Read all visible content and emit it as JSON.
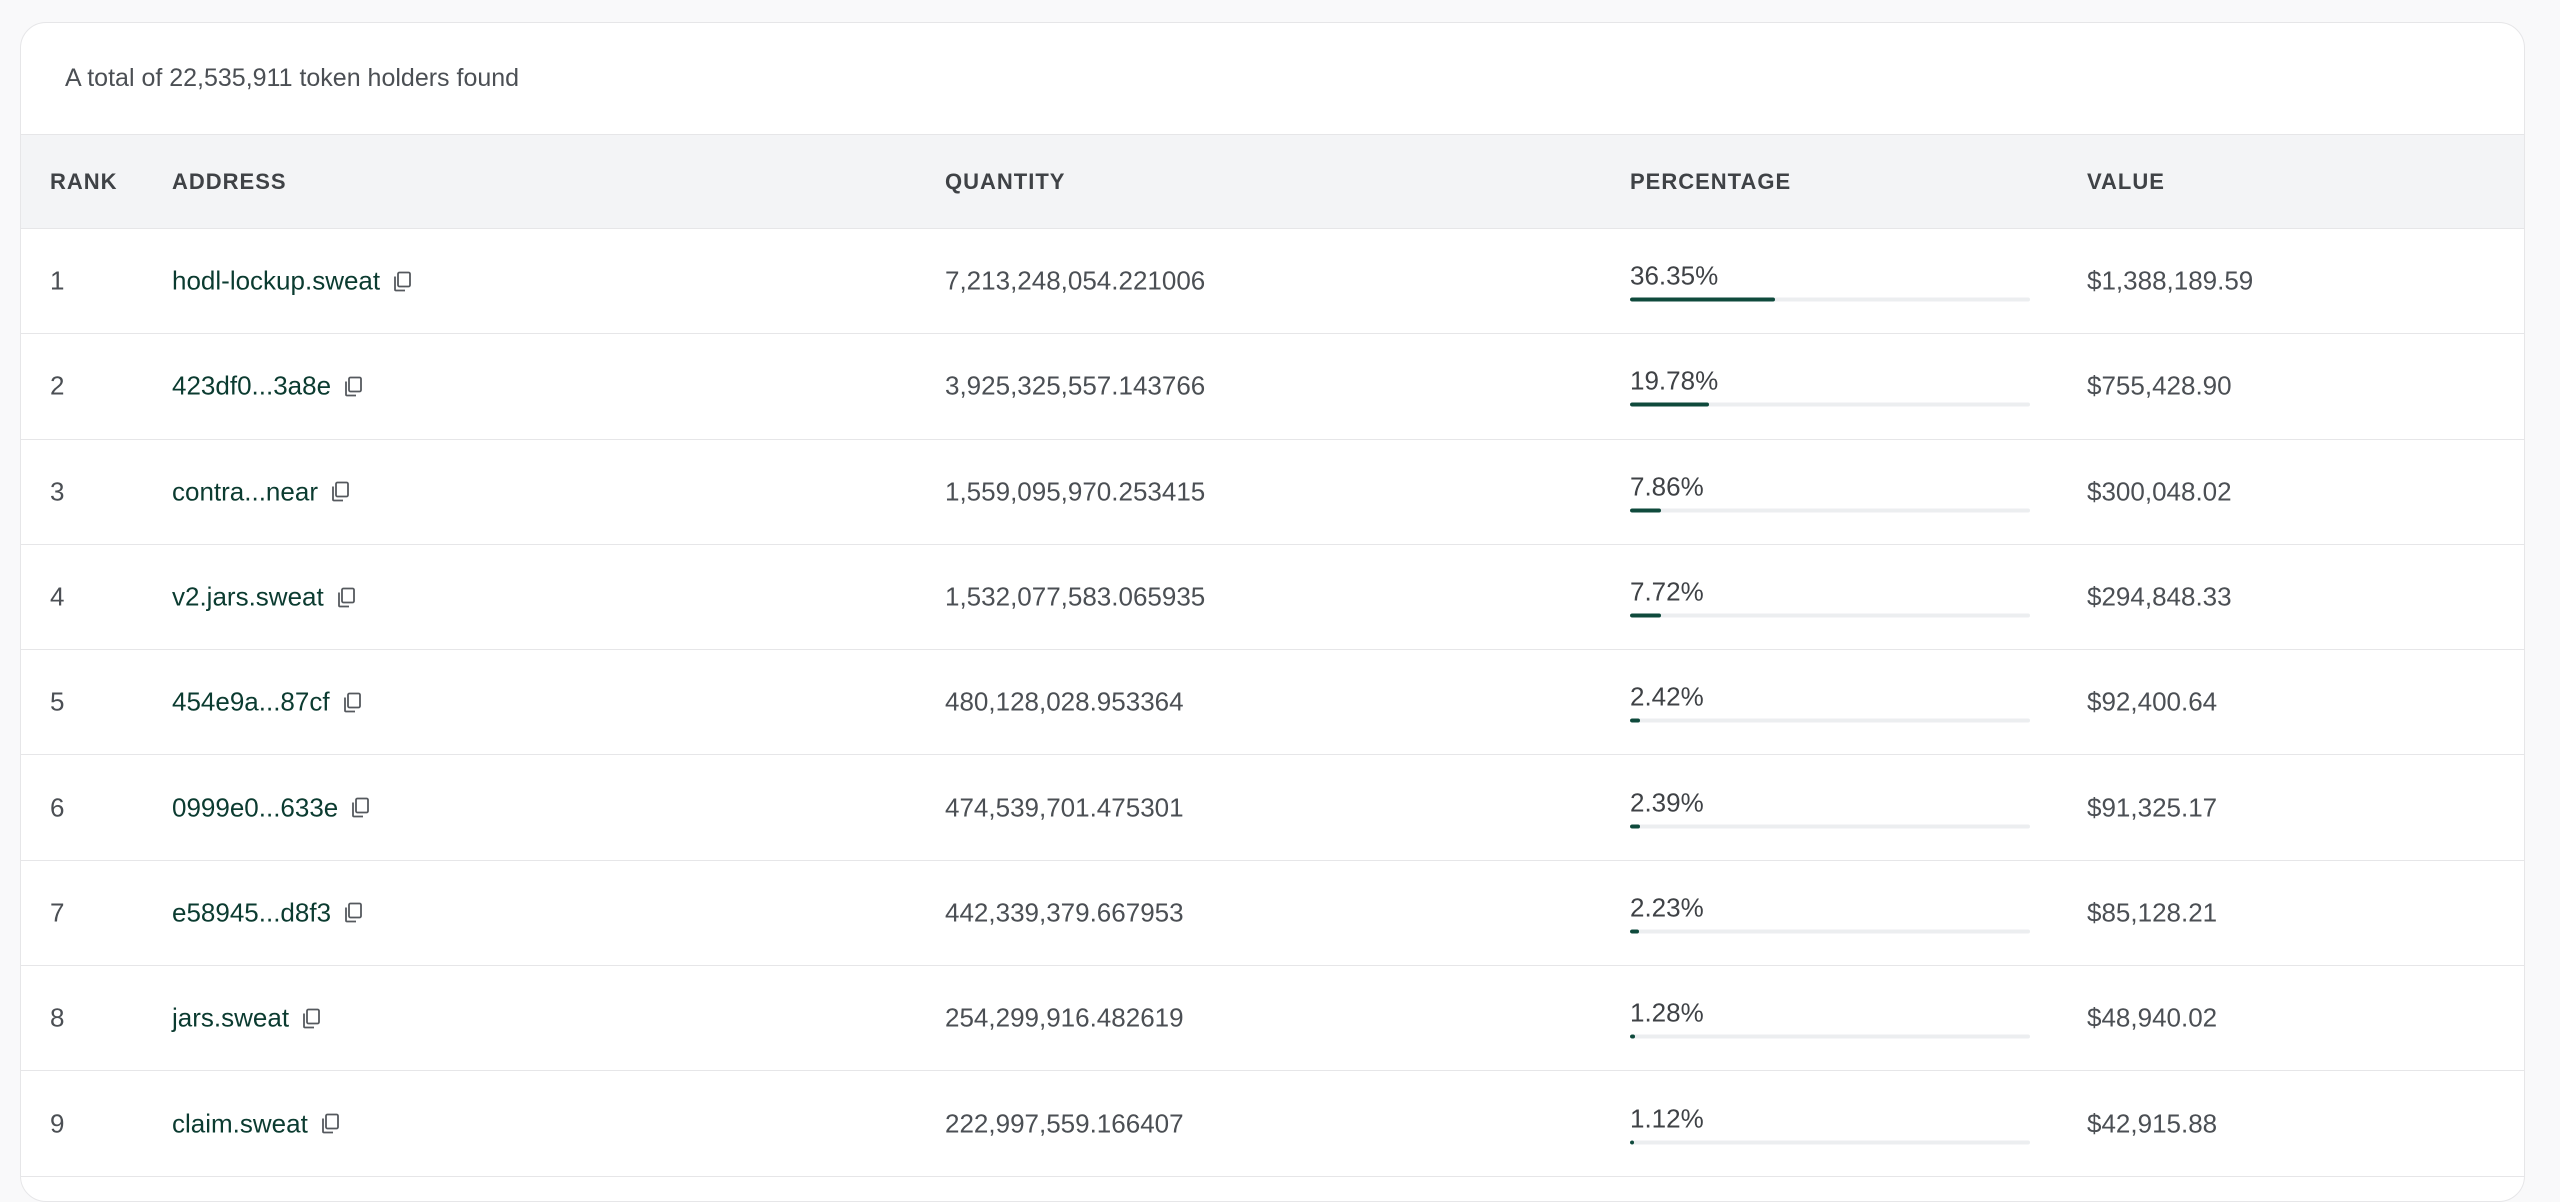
{
  "summary": "A total of 22,535,911 token holders found",
  "columns": {
    "rank": "RANK",
    "address": "ADDRESS",
    "quantity": "QUANTITY",
    "percentage": "PERCENTAGE",
    "value": "VALUE"
  },
  "colors": {
    "bar_fill": "#0f4a3c",
    "bar_track": "#eceef0",
    "address_text": "#0b3b30"
  },
  "rows": [
    {
      "rank": "1",
      "address": "hodl-lockup.sweat",
      "quantity": "7,213,248,054.221006",
      "percentage": "36.35%",
      "pct_value": 36.35,
      "value": "$1,388,189.59"
    },
    {
      "rank": "2",
      "address": "423df0...3a8e",
      "quantity": "3,925,325,557.143766",
      "percentage": "19.78%",
      "pct_value": 19.78,
      "value": "$755,428.90"
    },
    {
      "rank": "3",
      "address": "contra...near",
      "quantity": "1,559,095,970.253415",
      "percentage": "7.86%",
      "pct_value": 7.86,
      "value": "$300,048.02"
    },
    {
      "rank": "4",
      "address": "v2.jars.sweat",
      "quantity": "1,532,077,583.065935",
      "percentage": "7.72%",
      "pct_value": 7.72,
      "value": "$294,848.33"
    },
    {
      "rank": "5",
      "address": "454e9a...87cf",
      "quantity": "480,128,028.953364",
      "percentage": "2.42%",
      "pct_value": 2.42,
      "value": "$92,400.64"
    },
    {
      "rank": "6",
      "address": "0999e0...633e",
      "quantity": "474,539,701.475301",
      "percentage": "2.39%",
      "pct_value": 2.39,
      "value": "$91,325.17"
    },
    {
      "rank": "7",
      "address": "e58945...d8f3",
      "quantity": "442,339,379.667953",
      "percentage": "2.23%",
      "pct_value": 2.23,
      "value": "$85,128.21"
    },
    {
      "rank": "8",
      "address": "jars.sweat",
      "quantity": "254,299,916.482619",
      "percentage": "1.28%",
      "pct_value": 1.28,
      "value": "$48,940.02"
    },
    {
      "rank": "9",
      "address": "claim.sweat",
      "quantity": "222,997,559.166407",
      "percentage": "1.12%",
      "pct_value": 1.12,
      "value": "$42,915.88"
    }
  ]
}
